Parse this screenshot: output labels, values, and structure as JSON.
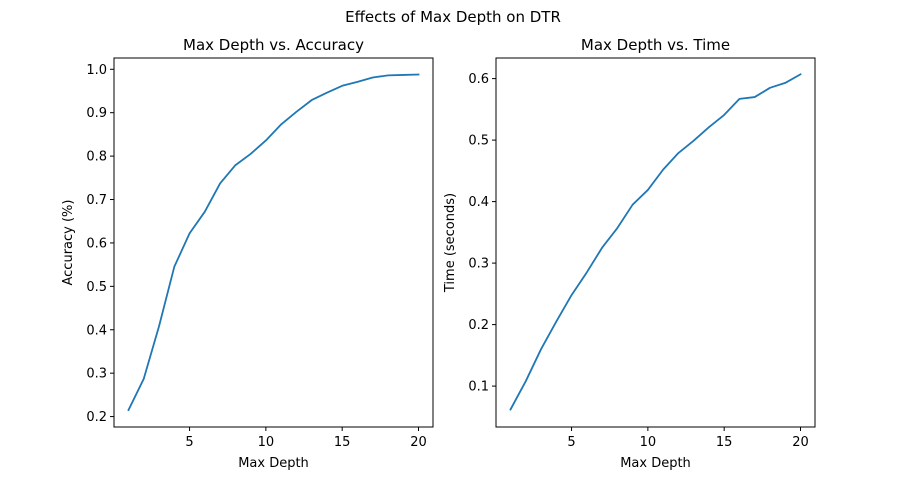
{
  "figure": {
    "suptitle": "Effects of Max Depth on DTR"
  },
  "chart_data": [
    {
      "type": "line",
      "title": "Max Depth vs. Accuracy",
      "xlabel": "Max Depth",
      "ylabel": "Accuracy (%)",
      "xlim": [
        0.05,
        20.95
      ],
      "ylim": [
        0.176,
        1.026
      ],
      "xticks": [
        5,
        10,
        15,
        20
      ],
      "yticks": [
        0.2,
        0.3,
        0.4,
        0.5,
        0.6,
        0.7,
        0.8,
        0.9,
        1.0
      ],
      "ytick_labels": [
        "0.2",
        "0.3",
        "0.4",
        "0.5",
        "0.6",
        "0.7",
        "0.8",
        "0.9",
        "1.0"
      ],
      "grid": false,
      "color": "#1f77b4",
      "x": [
        1,
        2,
        3,
        4,
        5,
        6,
        7,
        8,
        9,
        10,
        11,
        12,
        13,
        14,
        15,
        16,
        17,
        18,
        19,
        20
      ],
      "y": [
        0.215,
        0.287,
        0.408,
        0.545,
        0.622,
        0.672,
        0.737,
        0.779,
        0.805,
        0.836,
        0.873,
        0.902,
        0.929,
        0.946,
        0.962,
        0.971,
        0.981,
        0.986,
        0.987,
        0.988
      ]
    },
    {
      "type": "line",
      "title": "Max Depth vs. Time",
      "xlabel": "Max Depth",
      "ylabel": "Time (seconds)",
      "xlim": [
        0.05,
        20.95
      ],
      "ylim": [
        0.0335,
        0.6335
      ],
      "xticks": [
        5,
        10,
        15,
        20
      ],
      "yticks": [
        0.1,
        0.2,
        0.3,
        0.4,
        0.5,
        0.6
      ],
      "ytick_labels": [
        "0.1",
        "0.2",
        "0.3",
        "0.4",
        "0.5",
        "0.6"
      ],
      "grid": false,
      "color": "#1f77b4",
      "x": [
        1,
        2,
        3,
        4,
        5,
        6,
        7,
        8,
        9,
        10,
        11,
        12,
        13,
        14,
        15,
        16,
        17,
        18,
        19,
        20
      ],
      "y": [
        0.062,
        0.108,
        0.16,
        0.205,
        0.248,
        0.285,
        0.325,
        0.357,
        0.395,
        0.419,
        0.452,
        0.479,
        0.499,
        0.521,
        0.541,
        0.567,
        0.57,
        0.585,
        0.593,
        0.607
      ]
    }
  ]
}
